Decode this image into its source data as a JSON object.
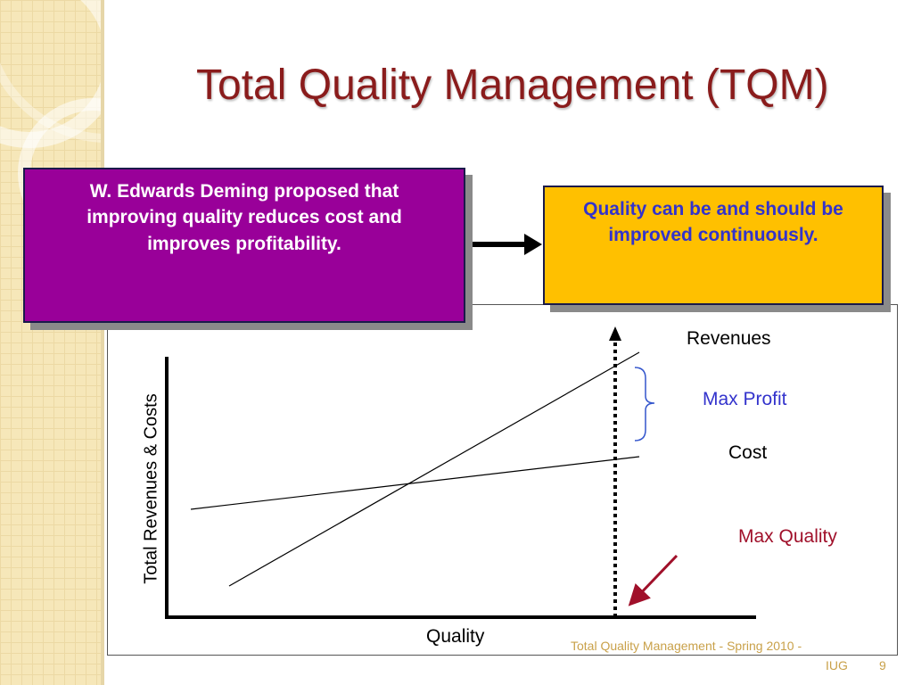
{
  "slide": {
    "title": "Total Quality Management (TQM)",
    "box_left_text": "W. Edwards Deming proposed that improving quality reduces cost and improves profitability.",
    "box_right_text": "Quality can be and should be improved continuously.",
    "footer_line1": "Total Quality Management - Spring 2010 -",
    "footer_line2": "IUG",
    "page_number": "9"
  },
  "diagram": {
    "y_axis_label": "Total Revenues & Costs",
    "x_axis_label": "Quality",
    "revenues_label": "Revenues",
    "max_profit_label": "Max Profit",
    "cost_label": "Cost",
    "max_quality_label": "Max Quality"
  },
  "colors": {
    "title": "#8a1c1c",
    "box_left_bg": "#990099",
    "box_right_bg": "#ffc000",
    "box_right_text": "#3333cc",
    "max_profit": "#3333cc",
    "max_quality": "#a0102a",
    "footer": "#c9a14a"
  }
}
